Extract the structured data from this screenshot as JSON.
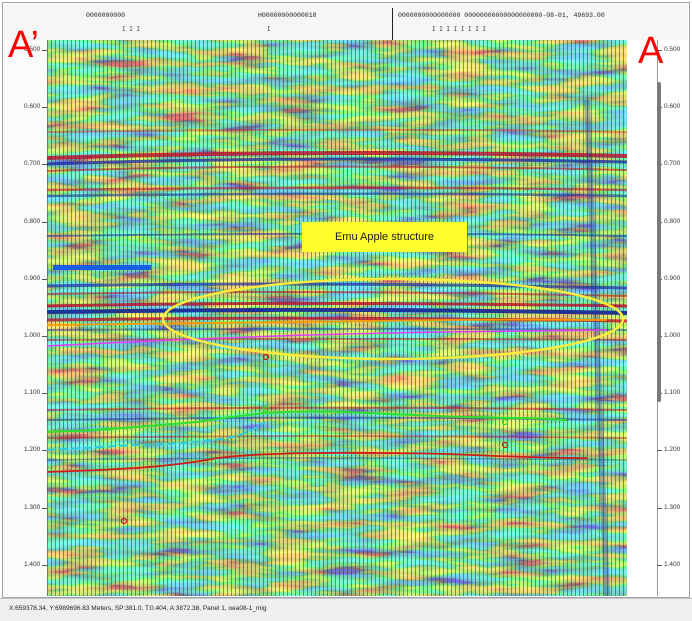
{
  "header": {
    "label_1": "0000000000",
    "label_2": "H00000000000010",
    "label_3": "0000000000000000 00000000000000000000-08-01, 49693.00",
    "ticks_1": "I I I",
    "ticks_2": "I",
    "ticks_3": "I I I          I I I I I"
  },
  "overlay_labels": {
    "left_marker": "A’",
    "right_marker": "A",
    "structure": "Emu Apple structure"
  },
  "axis": {
    "left_ticks": [
      "0.500",
      "0.600",
      "0.700",
      "0.800",
      "0.900",
      "1.000",
      "1.100",
      "1.200",
      "1.300",
      "1.400"
    ],
    "right_ticks": [
      "0.500",
      "0.600",
      "0.700",
      "0.800",
      "0.900",
      "1.000",
      "1.100",
      "1.200",
      "1.300",
      "1.400"
    ]
  },
  "status": {
    "text": "X:659378.34, Y:6989696.83 Meters, SP:381.0, T:0.404, A:3872.38, Panel 1, oea08-1_mig"
  },
  "colors": {
    "marker_text": "#ff0000",
    "structure_fill": "#ffff2e",
    "ellipse": "#ffeb3b",
    "horizon_orange": "#ff9800",
    "horizon_magenta": "#e040fb",
    "horizon_green": "#2ee02e",
    "horizon_cyan": "#2ec8e0",
    "horizon_red": "#d11a1a",
    "blue_bar": "#1a5ee6"
  }
}
